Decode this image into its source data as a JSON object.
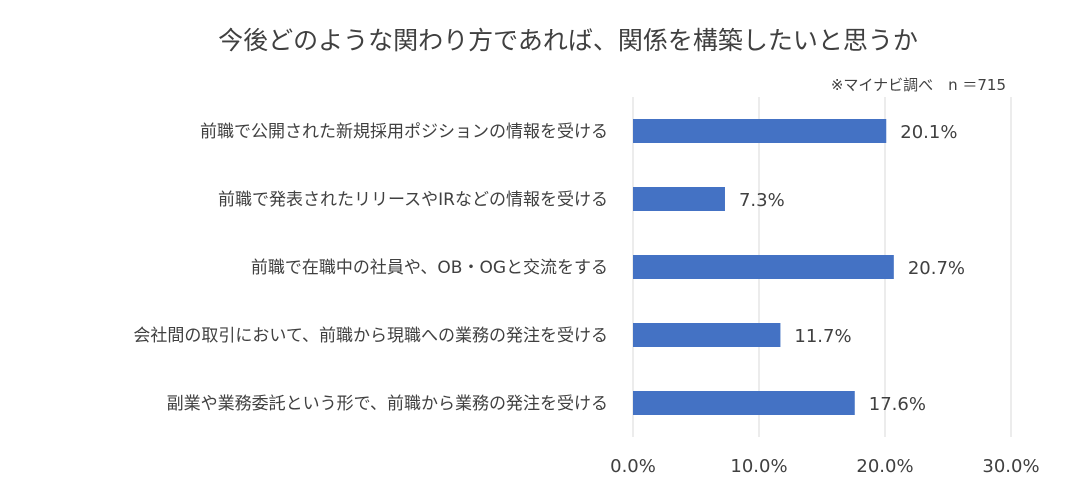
{
  "chart_data": {
    "type": "bar",
    "orientation": "horizontal",
    "title": "今後どのような関わり方であれば、関係を構築したいと思うか",
    "note": "※マイナビ調べ　n ＝715",
    "categories": [
      "前職で公開された新規採用ポジションの情報を受ける",
      "前職で発表されたリリースやIRなどの情報を受ける",
      "前職で在職中の社員や、OB・OGと交流をする",
      "会社間の取引において、前職から現職への業務の発注を受ける",
      "副業や業務委託という形で、前職から業務の発注を受ける"
    ],
    "values": [
      20.1,
      7.3,
      20.7,
      11.7,
      17.6
    ],
    "value_labels": [
      "20.1%",
      "7.3%",
      "20.7%",
      "11.7%",
      "17.6%"
    ],
    "xlim": [
      0,
      30
    ],
    "xticks": [
      0,
      10,
      20,
      30
    ],
    "xtick_labels": [
      "0.0%",
      "10.0%",
      "20.0%",
      "30.0%"
    ],
    "grid": true,
    "legend": "none",
    "bar_color": "#4472c4"
  }
}
